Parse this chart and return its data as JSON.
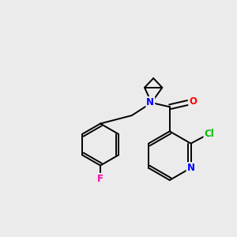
{
  "background_color": "#ebebeb",
  "atom_colors": {
    "N": "#0000ff",
    "O": "#ff0000",
    "F": "#ff00aa",
    "Cl": "#00bb00",
    "C": "#000000"
  },
  "figsize": [
    3.0,
    3.0
  ],
  "dpi": 100,
  "lw": 1.4,
  "fontsize": 8.5
}
